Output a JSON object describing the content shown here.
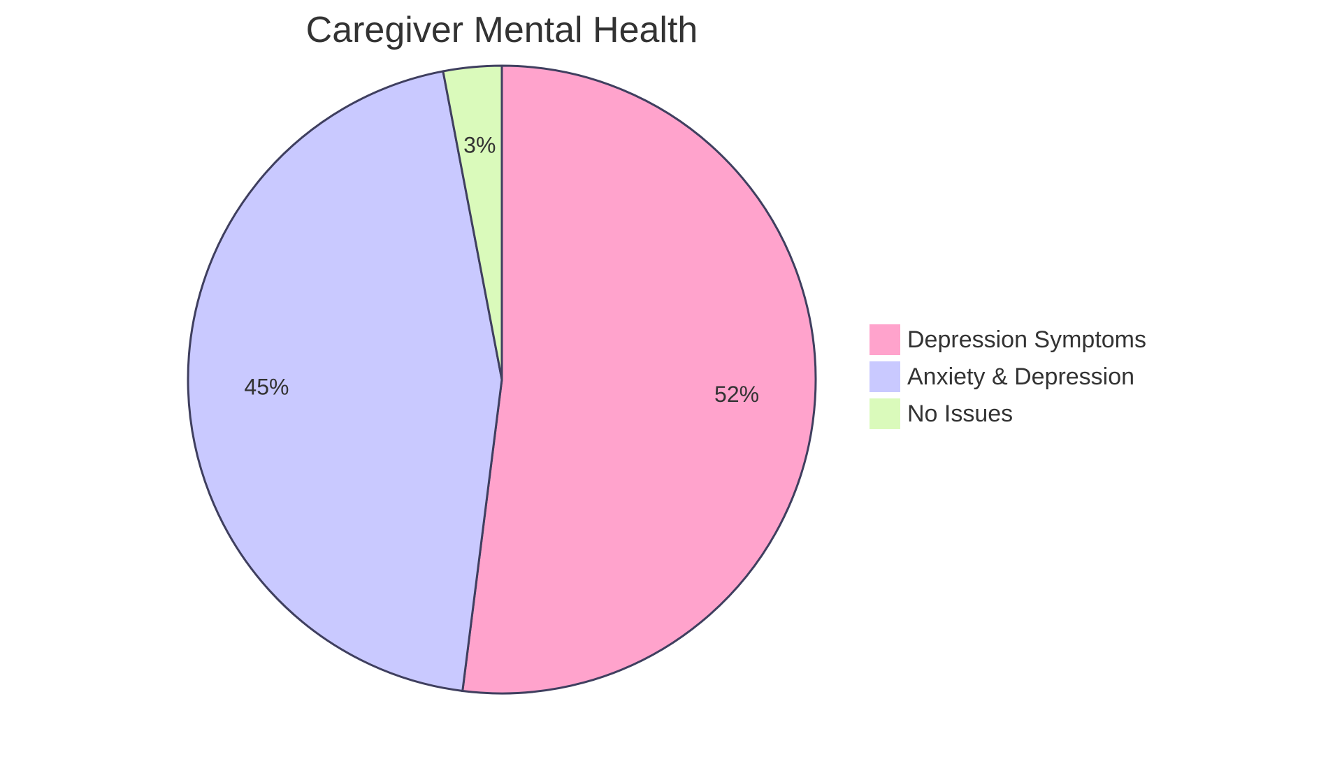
{
  "chart_data": {
    "type": "pie",
    "title": "Caregiver Mental Health",
    "slices": [
      {
        "label": "Depression Symptoms",
        "value": 52,
        "display": "52%",
        "color": "#FFA3CC"
      },
      {
        "label": "Anxiety & Depression",
        "value": 45,
        "display": "45%",
        "color": "#C9C9FF"
      },
      {
        "label": "No Issues",
        "value": 3,
        "display": "3%",
        "color": "#DAFABB"
      }
    ],
    "start_angle": "12 o'clock",
    "direction": "clockwise",
    "stroke_color": "#3F3F5F",
    "legend_position": "right"
  }
}
